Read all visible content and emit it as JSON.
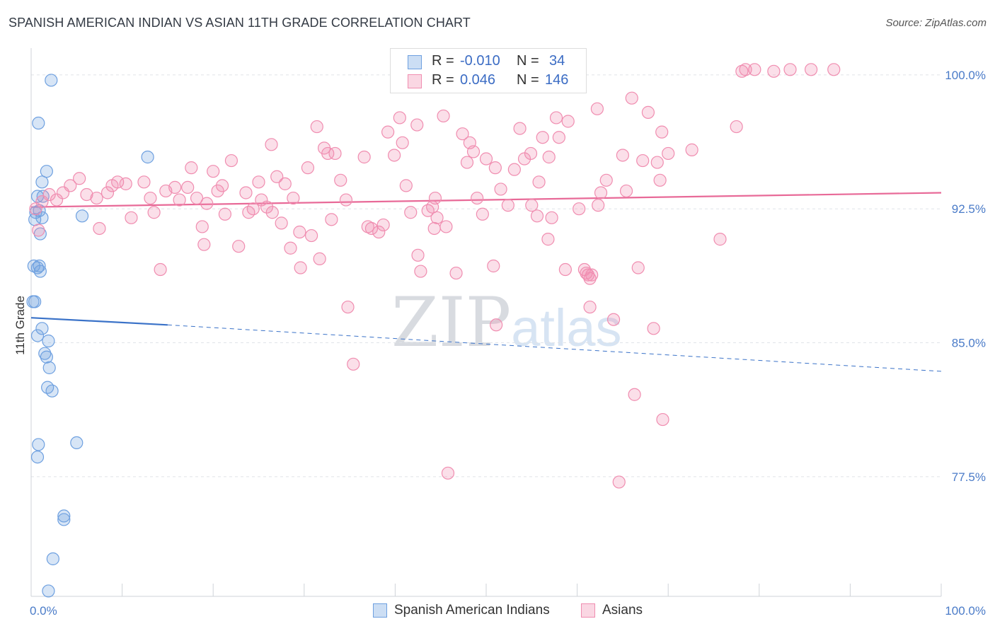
{
  "title": "SPANISH AMERICAN INDIAN VS ASIAN 11TH GRADE CORRELATION CHART",
  "source": "Source: ZipAtlas.com",
  "watermark": {
    "zip": "ZIP",
    "atlas": "atlas"
  },
  "legend": {
    "rows": [
      {
        "r_label": "R =",
        "r_value": "-0.010",
        "n_label": "N =",
        "n_value": "34",
        "color": "#6ea0e0"
      },
      {
        "r_label": "R =",
        "r_value": "0.046",
        "n_label": "N =",
        "n_value": "146",
        "color": "#f08db0"
      }
    ]
  },
  "bottom_legend": [
    {
      "label": "Spanish American Indians",
      "color": "#6ea0e0"
    },
    {
      "label": "Asians",
      "color": "#f08db0"
    }
  ],
  "chart_data": {
    "type": "scatter",
    "ylabel": "11th Grade",
    "xlim": [
      0,
      100
    ],
    "ylim": [
      70.8,
      101.5
    ],
    "y_ticks": [
      {
        "value": 100.0,
        "label": "100.0%"
      },
      {
        "value": 92.5,
        "label": "92.5%"
      },
      {
        "value": 85.0,
        "label": "85.0%"
      },
      {
        "value": 77.5,
        "label": "77.5%"
      }
    ],
    "x_tick_labels": [
      {
        "value": 0,
        "label": "0.0%"
      },
      {
        "value": 100,
        "label": "100.0%"
      }
    ],
    "x_minor_ticks": [
      0,
      10,
      20,
      30,
      40,
      50,
      60,
      70,
      80,
      90,
      100
    ],
    "grid": true,
    "series": [
      {
        "name": "Spanish American Indians",
        "color": "#6ea0e0",
        "trend": {
          "x0": 0,
          "y0": 86.4,
          "x1": 15,
          "y1": 86.0,
          "dash_x1": 100,
          "dash_y1": 83.4
        },
        "points": [
          [
            2.2,
            99.7
          ],
          [
            0.8,
            97.3
          ],
          [
            1.7,
            94.6
          ],
          [
            12.8,
            95.4
          ],
          [
            1.2,
            94.0
          ],
          [
            0.7,
            93.2
          ],
          [
            1.3,
            93.2
          ],
          [
            0.5,
            92.3
          ],
          [
            0.9,
            92.4
          ],
          [
            1.2,
            92.0
          ],
          [
            5.6,
            92.1
          ],
          [
            1.0,
            91.1
          ],
          [
            0.3,
            89.3
          ],
          [
            0.9,
            89.3
          ],
          [
            0.7,
            89.2
          ],
          [
            0.2,
            87.3
          ],
          [
            0.4,
            87.3
          ],
          [
            1.2,
            85.8
          ],
          [
            0.7,
            85.4
          ],
          [
            1.9,
            85.1
          ],
          [
            1.5,
            84.4
          ],
          [
            1.7,
            84.2
          ],
          [
            2.0,
            83.6
          ],
          [
            1.8,
            82.5
          ],
          [
            2.3,
            82.3
          ],
          [
            0.8,
            79.3
          ],
          [
            5.0,
            79.4
          ],
          [
            0.7,
            78.6
          ],
          [
            3.6,
            75.3
          ],
          [
            3.6,
            75.1
          ],
          [
            2.4,
            72.9
          ],
          [
            1.9,
            71.1
          ],
          [
            0.4,
            91.9
          ],
          [
            1.0,
            89.0
          ]
        ]
      },
      {
        "name": "Asians",
        "color": "#f08db0",
        "trend": {
          "x0": 0,
          "y0": 92.6,
          "x1": 100,
          "y1": 93.4
        },
        "points": [
          [
            0.5,
            92.5
          ],
          [
            0.8,
            91.3
          ],
          [
            1.2,
            92.9
          ],
          [
            2.0,
            93.3
          ],
          [
            2.8,
            93.0
          ],
          [
            3.5,
            93.4
          ],
          [
            4.3,
            93.8
          ],
          [
            5.3,
            94.2
          ],
          [
            6.1,
            93.3
          ],
          [
            7.2,
            93.1
          ],
          [
            7.5,
            91.4
          ],
          [
            8.4,
            93.4
          ],
          [
            8.9,
            93.8
          ],
          [
            9.5,
            94.0
          ],
          [
            10.4,
            93.9
          ],
          [
            11.0,
            92.0
          ],
          [
            12.4,
            94.0
          ],
          [
            13.1,
            93.1
          ],
          [
            13.5,
            92.3
          ],
          [
            14.2,
            89.1
          ],
          [
            14.8,
            93.5
          ],
          [
            15.8,
            93.7
          ],
          [
            16.3,
            93.0
          ],
          [
            17.2,
            93.7
          ],
          [
            17.6,
            94.8
          ],
          [
            18.2,
            93.1
          ],
          [
            18.8,
            91.5
          ],
          [
            19.0,
            90.5
          ],
          [
            19.3,
            92.8
          ],
          [
            20.0,
            94.6
          ],
          [
            20.5,
            93.5
          ],
          [
            21.0,
            93.8
          ],
          [
            21.3,
            92.2
          ],
          [
            22.0,
            95.2
          ],
          [
            22.8,
            90.4
          ],
          [
            23.6,
            93.4
          ],
          [
            23.9,
            92.3
          ],
          [
            24.4,
            92.5
          ],
          [
            25.0,
            94.0
          ],
          [
            25.3,
            93.0
          ],
          [
            25.9,
            92.6
          ],
          [
            26.4,
            96.1
          ],
          [
            26.5,
            92.3
          ],
          [
            27.0,
            94.3
          ],
          [
            27.5,
            91.7
          ],
          [
            27.9,
            93.9
          ],
          [
            28.5,
            90.3
          ],
          [
            28.8,
            93.1
          ],
          [
            29.5,
            91.2
          ],
          [
            29.6,
            89.2
          ],
          [
            30.4,
            94.8
          ],
          [
            30.8,
            91.0
          ],
          [
            31.4,
            97.1
          ],
          [
            31.7,
            89.7
          ],
          [
            32.2,
            95.9
          ],
          [
            32.6,
            95.6
          ],
          [
            33.0,
            91.9
          ],
          [
            33.4,
            95.6
          ],
          [
            34.0,
            94.1
          ],
          [
            34.6,
            93.0
          ],
          [
            34.8,
            87.0
          ],
          [
            35.4,
            83.8
          ],
          [
            36.6,
            95.4
          ],
          [
            37.0,
            91.5
          ],
          [
            37.4,
            91.4
          ],
          [
            38.2,
            91.2
          ],
          [
            38.7,
            91.6
          ],
          [
            39.2,
            96.8
          ],
          [
            39.9,
            95.5
          ],
          [
            40.5,
            97.6
          ],
          [
            40.8,
            96.2
          ],
          [
            41.2,
            93.8
          ],
          [
            41.7,
            92.3
          ],
          [
            42.4,
            97.2
          ],
          [
            42.5,
            89.9
          ],
          [
            42.8,
            89.0
          ],
          [
            43.6,
            92.4
          ],
          [
            44.1,
            92.6
          ],
          [
            44.4,
            93.1
          ],
          [
            44.3,
            91.4
          ],
          [
            44.6,
            92.0
          ],
          [
            45.3,
            97.7
          ],
          [
            45.6,
            91.5
          ],
          [
            45.8,
            77.7
          ],
          [
            46.7,
            88.9
          ],
          [
            47.4,
            96.7
          ],
          [
            47.9,
            95.1
          ],
          [
            48.2,
            96.2
          ],
          [
            48.6,
            95.7
          ],
          [
            49.0,
            93.1
          ],
          [
            49.6,
            92.2
          ],
          [
            50.0,
            95.3
          ],
          [
            50.8,
            89.3
          ],
          [
            51.0,
            94.8
          ],
          [
            51.1,
            86.0
          ],
          [
            51.6,
            93.6
          ],
          [
            52.4,
            92.7
          ],
          [
            53.1,
            94.7
          ],
          [
            53.7,
            97.0
          ],
          [
            54.2,
            95.3
          ],
          [
            54.9,
            95.6
          ],
          [
            55.0,
            92.7
          ],
          [
            55.6,
            92.1
          ],
          [
            55.8,
            94.0
          ],
          [
            56.2,
            96.5
          ],
          [
            56.8,
            90.8
          ],
          [
            56.9,
            95.4
          ],
          [
            57.2,
            92.0
          ],
          [
            57.7,
            97.6
          ],
          [
            58.0,
            96.5
          ],
          [
            58.7,
            89.1
          ],
          [
            59.0,
            97.4
          ],
          [
            60.2,
            92.5
          ],
          [
            60.8,
            89.1
          ],
          [
            61.0,
            88.9
          ],
          [
            61.2,
            88.8
          ],
          [
            61.4,
            88.6
          ],
          [
            61.6,
            88.8
          ],
          [
            61.4,
            87.0
          ],
          [
            62.2,
            98.1
          ],
          [
            62.3,
            92.7
          ],
          [
            62.6,
            93.4
          ],
          [
            63.2,
            94.1
          ],
          [
            64.0,
            86.3
          ],
          [
            64.6,
            77.2
          ],
          [
            65.0,
            95.5
          ],
          [
            65.4,
            93.5
          ],
          [
            66.0,
            98.7
          ],
          [
            66.3,
            82.1
          ],
          [
            66.7,
            89.2
          ],
          [
            67.2,
            95.2
          ],
          [
            67.8,
            97.9
          ],
          [
            68.4,
            85.8
          ],
          [
            68.8,
            95.1
          ],
          [
            69.1,
            94.1
          ],
          [
            69.3,
            96.8
          ],
          [
            69.4,
            80.7
          ],
          [
            70.0,
            95.6
          ],
          [
            72.6,
            95.8
          ],
          [
            75.7,
            90.8
          ],
          [
            77.5,
            97.1
          ],
          [
            78.1,
            100.2
          ],
          [
            78.5,
            100.3
          ],
          [
            79.5,
            100.3
          ],
          [
            81.6,
            100.2
          ],
          [
            83.4,
            100.3
          ],
          [
            85.7,
            100.3
          ],
          [
            88.2,
            100.3
          ]
        ]
      }
    ]
  }
}
